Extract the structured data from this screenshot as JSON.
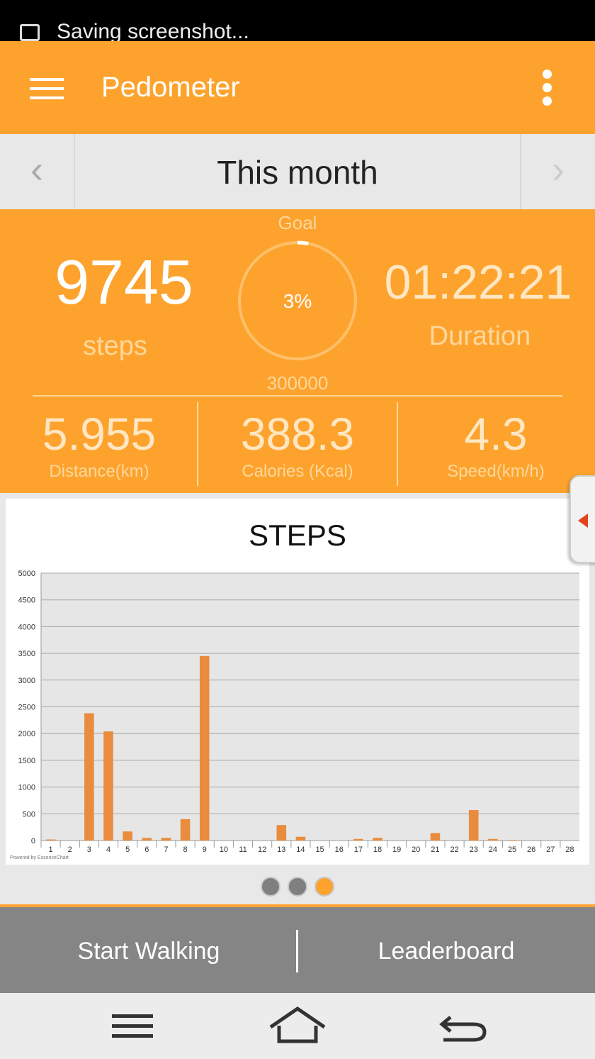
{
  "status_bar": {
    "notification": "Saving screenshot..."
  },
  "app_bar": {
    "title": "Pedometer"
  },
  "period": {
    "title": "This month",
    "prev_icon": "chevron-left-icon",
    "next_icon": "chevron-right-icon"
  },
  "stats": {
    "steps_value": "9745",
    "steps_label": "steps",
    "goal_label": "Goal",
    "goal_percent": "3%",
    "goal_fraction": 0.03,
    "goal_value": "300000",
    "duration_value": "01:22:21",
    "duration_label": "Duration",
    "distance_value": "5.955",
    "distance_label": "Distance(km)",
    "calories_value": "388.3",
    "calories_label": "Calories (Kcal)",
    "speed_value": "4.3",
    "speed_label": "Speed(km/h)"
  },
  "chart_data": {
    "type": "bar",
    "title": "STEPS",
    "credit": "Powered by EssenceChart",
    "categories": [
      "1",
      "2",
      "3",
      "4",
      "5",
      "6",
      "7",
      "8",
      "9",
      "10",
      "11",
      "12",
      "13",
      "14",
      "15",
      "16",
      "17",
      "18",
      "19",
      "20",
      "21",
      "22",
      "23",
      "24",
      "25",
      "26",
      "27",
      "28"
    ],
    "values": [
      20,
      0,
      2380,
      2040,
      170,
      50,
      50,
      400,
      3450,
      0,
      0,
      0,
      290,
      70,
      0,
      0,
      30,
      50,
      0,
      0,
      140,
      0,
      570,
      30,
      10,
      0,
      0,
      0
    ],
    "yticks": [
      "0",
      "500",
      "1000",
      "1500",
      "2000",
      "2500",
      "3000",
      "3500",
      "4000",
      "4500",
      "5000"
    ],
    "ylim": [
      0,
      5000
    ],
    "bar_color": "#ea8c3e",
    "grid": true
  },
  "pager": {
    "count": 3,
    "active": 2
  },
  "actions": {
    "start_walking": "Start Walking",
    "leaderboard": "Leaderboard"
  },
  "colors": {
    "accent": "#fda32d",
    "action_bar": "#858585"
  }
}
